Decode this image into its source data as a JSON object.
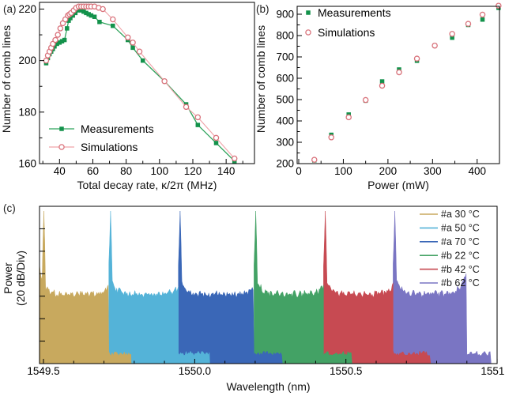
{
  "figure": {
    "panel_a_label": "(a)",
    "panel_b_label": "(b)",
    "panel_c_label": "(c)"
  },
  "colors": {
    "measurement_green": "#13924B",
    "measurement_line_green": "#2FA35C",
    "simulation_pink": "#D9727B",
    "simulation_line_pink": "#F0A3A9",
    "frame_black": "#000000"
  },
  "chart_data": [
    {
      "id": "a",
      "type": "line",
      "xlabel": "Total decay rate, κ/2π  (MHz)",
      "ylabel": "Number of comb lines",
      "xlim": [
        28,
        157
      ],
      "ylim": [
        160,
        222.6
      ],
      "xticks": [
        40,
        60,
        80,
        100,
        120,
        140
      ],
      "xminors": [
        30,
        50,
        70,
        90,
        110,
        130,
        150
      ],
      "yticks": [
        160,
        180,
        200,
        220
      ],
      "yminors": [
        170,
        190,
        210
      ],
      "legend_position": "bottom-left",
      "series": [
        {
          "name": "Measurements",
          "marker": "square",
          "marker_color": "#13924B",
          "line_color": "#2FA35C",
          "x": [
            32,
            33,
            34,
            35,
            36,
            37,
            38.5,
            40,
            41.5,
            43,
            44.5,
            45.5,
            46.5,
            48,
            49.5,
            51,
            53,
            54.5,
            56,
            57.5,
            59,
            61,
            64,
            72,
            81,
            84,
            90,
            103,
            116,
            123,
            134,
            145
          ],
          "y": [
            199,
            201,
            202.5,
            203.5,
            204.5,
            205.5,
            206.5,
            207,
            207.5,
            208,
            212.5,
            215.5,
            216.5,
            217.5,
            218.5,
            219.5,
            219.5,
            219,
            218.5,
            218,
            217.5,
            217,
            215,
            213.5,
            208,
            205,
            200,
            192,
            183,
            175,
            168,
            161
          ]
        },
        {
          "name": "Simulations",
          "marker": "open-circle",
          "marker_color": "#D9727B",
          "line_color": "#F0A3A9",
          "x": [
            32,
            33,
            34,
            35,
            36,
            37.5,
            39,
            40.5,
            42,
            43.5,
            45,
            46,
            47,
            48.5,
            50,
            51.5,
            53,
            54.5,
            56,
            57.5,
            59,
            61,
            63.5,
            66,
            72,
            81,
            84,
            88,
            103,
            116,
            123,
            134,
            145
          ],
          "y": [
            200,
            202,
            203.5,
            205,
            206.5,
            208,
            210,
            212.5,
            214.5,
            216,
            217.5,
            218,
            218.5,
            219.5,
            220.5,
            221,
            221,
            221,
            221,
            221,
            221,
            221,
            220.5,
            220,
            216,
            209,
            207,
            203.5,
            192,
            182,
            178,
            170,
            162
          ]
        }
      ]
    },
    {
      "id": "b",
      "type": "scatter",
      "xlabel": "Power (mW)",
      "ylabel": "Number of comb lines",
      "xlim": [
        0,
        455
      ],
      "ylim": [
        200,
        937
      ],
      "xticks": [
        0,
        100,
        200,
        300,
        400
      ],
      "xminors": [
        50,
        150,
        250,
        350
      ],
      "yticks": [
        200,
        300,
        400,
        500,
        600,
        700,
        800,
        900
      ],
      "yminors": [
        250,
        350,
        450,
        550,
        650,
        750,
        850
      ],
      "legend_position": "top-left",
      "series": [
        {
          "name": "Measurements",
          "marker": "square",
          "marker_color": "#13924B",
          "x": [
            35,
            73,
            112,
            150,
            187,
            225,
            265,
            305,
            344,
            380,
            412,
            448
          ],
          "y": [
            215,
            335,
            430,
            495,
            585,
            641,
            682,
            753,
            790,
            850,
            875,
            930
          ]
        },
        {
          "name": "Simulations",
          "marker": "open-circle",
          "marker_color": "#D9727B",
          "x": [
            35,
            73,
            112,
            150,
            187,
            225,
            265,
            305,
            344,
            380,
            412,
            448
          ],
          "y": [
            218,
            323,
            417,
            498,
            565,
            628,
            692,
            753,
            808,
            855,
            898,
            940
          ]
        }
      ]
    },
    {
      "id": "c",
      "type": "area",
      "xlabel": "Wavelength (nm)",
      "ylabel": "Power (20 dB/Div)",
      "ylabel_line1": "Power",
      "ylabel_line2": "(20 dB/Div)",
      "xlim": [
        1549.487,
        1551.0
      ],
      "xticks": [
        1549.5,
        1550.0,
        1550.5,
        1551.0
      ],
      "xminors": [
        1549.6,
        1549.7,
        1549.8,
        1549.9,
        1550.1,
        1550.2,
        1550.3,
        1550.4,
        1550.6,
        1550.7,
        1550.8,
        1550.9
      ],
      "y_divisions_db": 20,
      "legend_position": "top-right",
      "series": [
        {
          "name": "#a 30 °C",
          "color": "#C8A95E",
          "pump_nm": 1549.502,
          "body_start_nm": 1549.487,
          "body_end_nm": 1549.716,
          "tail_end_nm": 1549.79,
          "end_bump": false
        },
        {
          "name": "#a 50 °C",
          "color": "#54B3D8",
          "pump_nm": 1549.722,
          "body_start_nm": 1549.716,
          "body_end_nm": 1549.946,
          "tail_end_nm": 1550.05,
          "end_bump": false
        },
        {
          "name": "#a 70 °C",
          "color": "#3A67B7",
          "pump_nm": 1549.952,
          "body_start_nm": 1549.946,
          "body_end_nm": 1550.196,
          "tail_end_nm": 1550.29,
          "end_bump": false
        },
        {
          "name": "#b 22 °C",
          "color": "#43A265",
          "pump_nm": 1550.202,
          "body_start_nm": 1550.196,
          "body_end_nm": 1550.426,
          "tail_end_nm": 1550.52,
          "end_bump": false
        },
        {
          "name": "#b 42 °C",
          "color": "#C74A52",
          "pump_nm": 1550.432,
          "body_start_nm": 1550.426,
          "body_end_nm": 1550.656,
          "tail_end_nm": 1550.78,
          "end_bump": false
        },
        {
          "name": "#b 62 °C",
          "color": "#7A75C3",
          "pump_nm": 1550.662,
          "body_start_nm": 1550.656,
          "body_end_nm": 1550.9,
          "tail_end_nm": 1550.98,
          "end_bump": true
        }
      ]
    }
  ]
}
